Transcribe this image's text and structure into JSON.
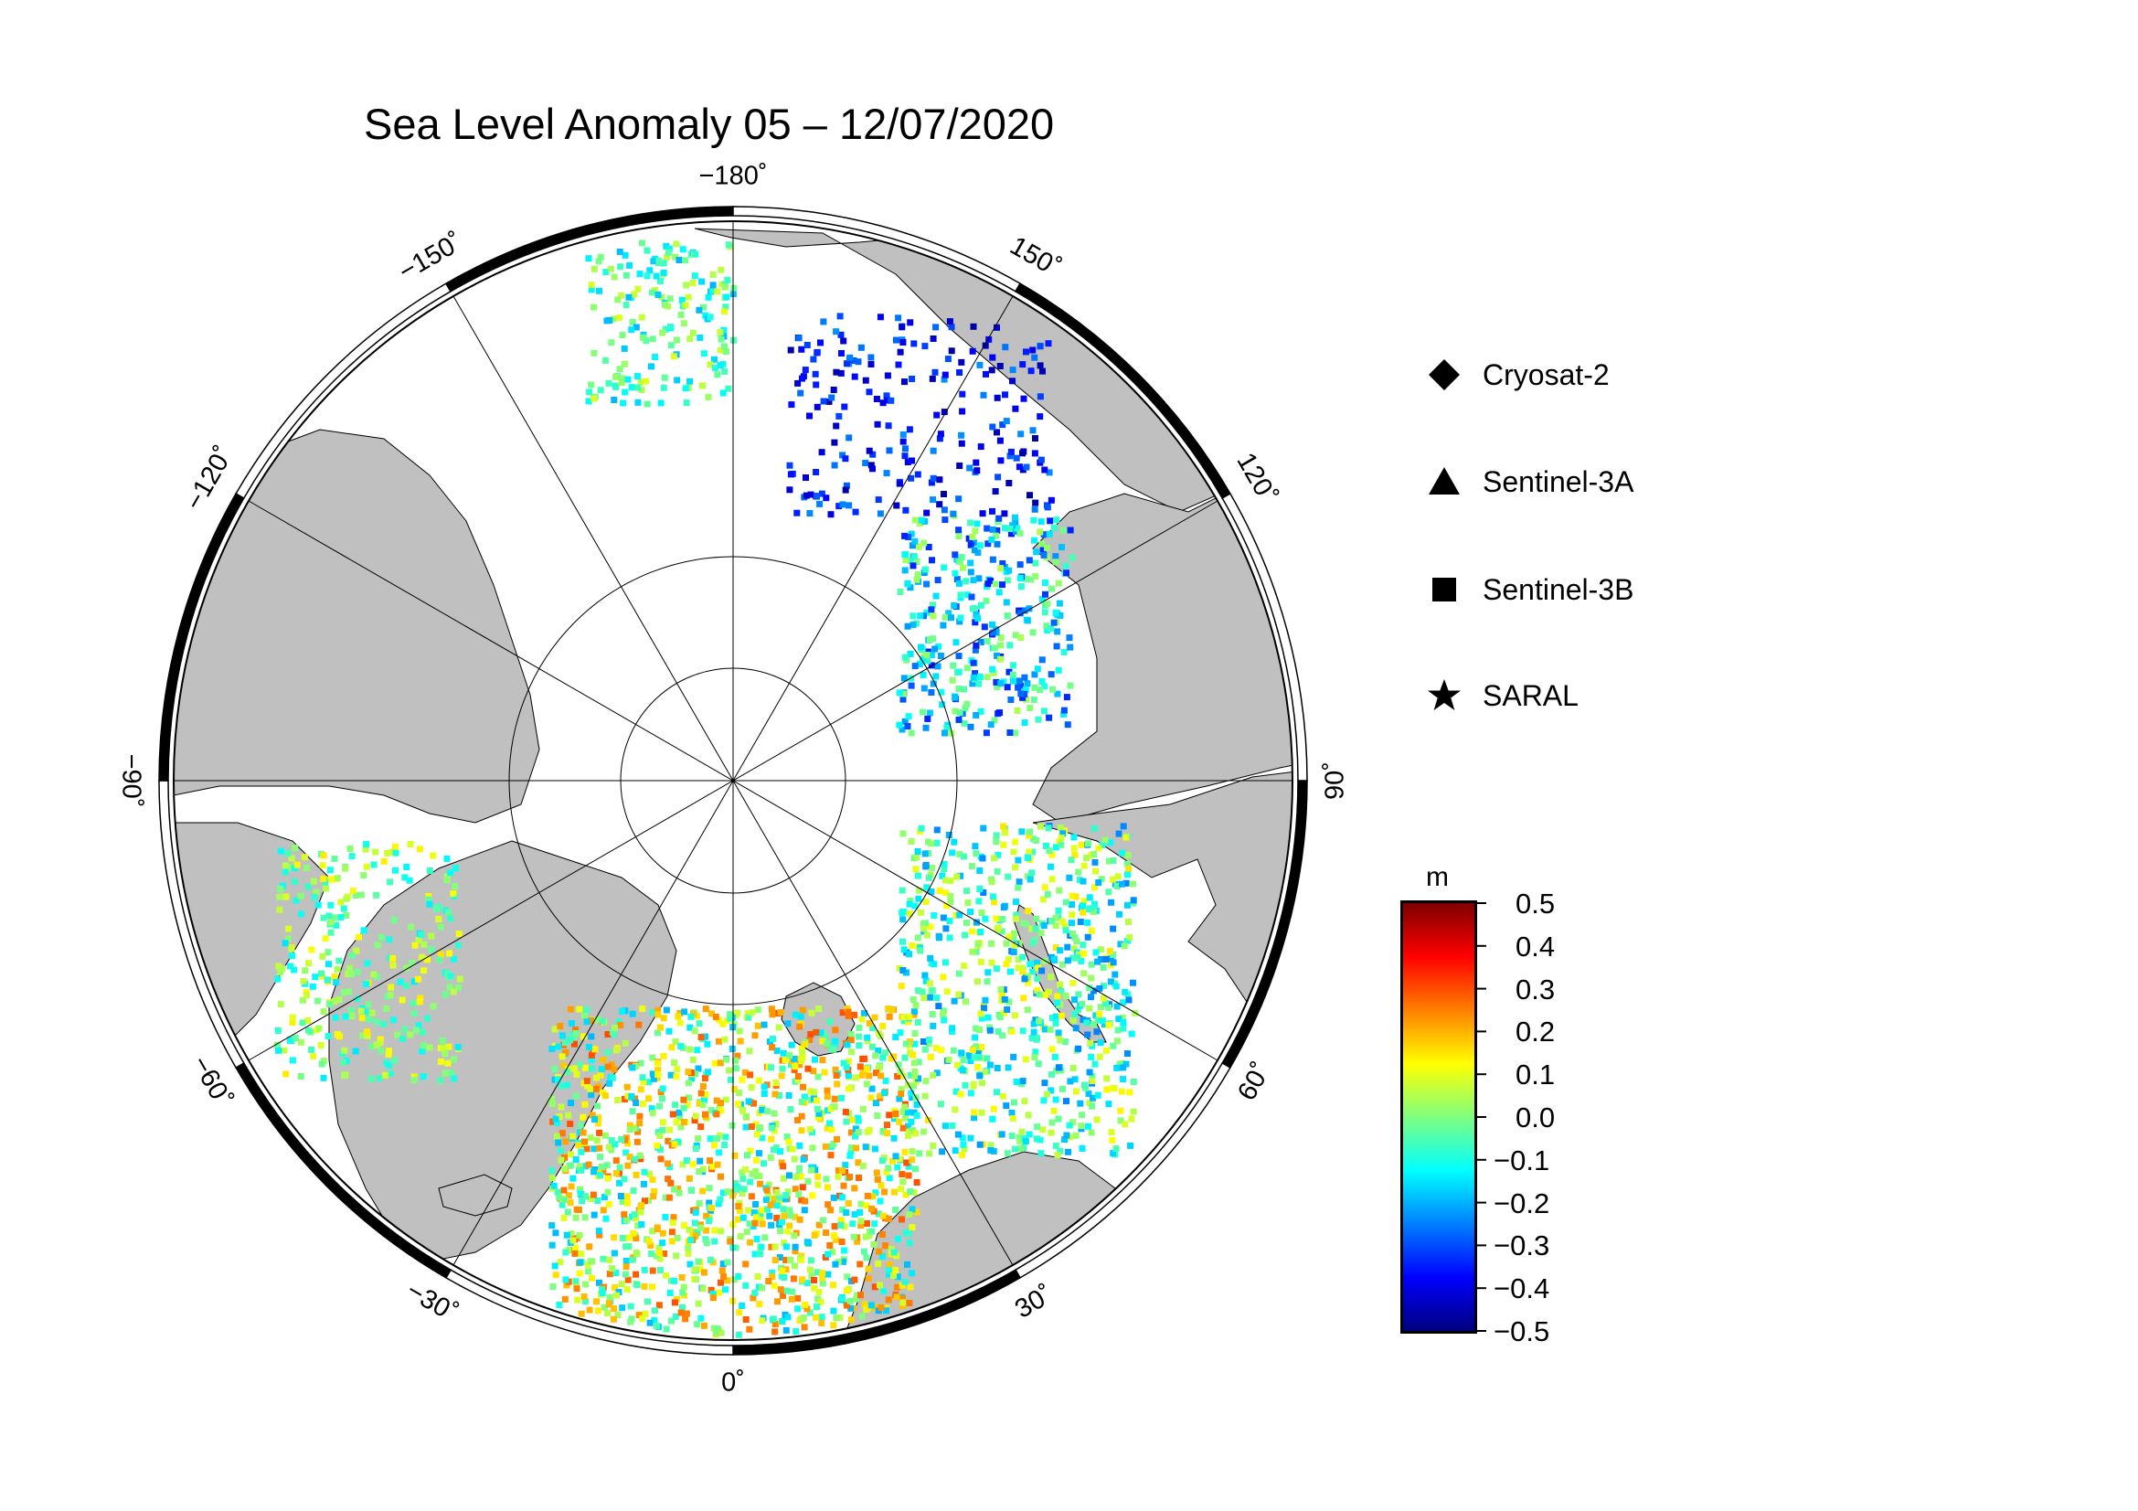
{
  "title": "Sea Level Anomaly 05 – 12/07/2020",
  "map": {
    "projection": "north-polar-stereographic",
    "meridian_labels": [
      {
        "lon": -180,
        "text": "−180˚"
      },
      {
        "lon": 150,
        "text": "150˚"
      },
      {
        "lon": 120,
        "text": "120˚"
      },
      {
        "lon": 90,
        "text": "90˚"
      },
      {
        "lon": 60,
        "text": "60˚"
      },
      {
        "lon": 30,
        "text": "30˚"
      },
      {
        "lon": 0,
        "text": "0˚"
      },
      {
        "lon": -30,
        "text": "−30˚"
      },
      {
        "lon": -60,
        "text": "−60˚"
      },
      {
        "lon": -90,
        "text": "−90˚"
      },
      {
        "lon": -120,
        "text": "−120˚"
      },
      {
        "lon": -150,
        "text": "−150˚"
      }
    ],
    "colors": {
      "land": "#c0c0c0",
      "ice": "#ffffff",
      "frame": "#000000"
    }
  },
  "legend": {
    "items": [
      {
        "label": "Cryosat-2",
        "marker": "diamond"
      },
      {
        "label": "Sentinel-3A",
        "marker": "triangle"
      },
      {
        "label": "Sentinel-3B",
        "marker": "square"
      },
      {
        "label": "SARAL",
        "marker": "star"
      }
    ]
  },
  "colorbar": {
    "unit": "m",
    "min": -0.5,
    "max": 0.5,
    "ticks": [
      "0.5",
      "0.4",
      "0.3",
      "0.2",
      "0.1",
      "0.0",
      "−0.1",
      "−0.2",
      "−0.3",
      "−0.4",
      "−0.5"
    ],
    "colormap": [
      "#00007f",
      "#0000ff",
      "#007fff",
      "#00ffff",
      "#7fff7f",
      "#ffff00",
      "#ff7f00",
      "#ff0000",
      "#7f0000"
    ]
  }
}
